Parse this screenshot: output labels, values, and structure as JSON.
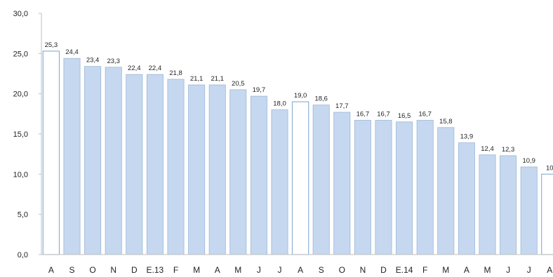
{
  "chart_data": {
    "type": "bar",
    "title": "",
    "xlabel": "",
    "ylabel": "",
    "ylim": [
      0,
      30
    ],
    "ytick_labels": [
      "0,0",
      "5,0",
      "10,0",
      "15,0",
      "20,0",
      "25,0",
      "30,0"
    ],
    "grid": false,
    "categories": [
      "A",
      "S",
      "O",
      "N",
      "D",
      "E.13",
      "F",
      "M",
      "A",
      "M",
      "J",
      "J",
      "A",
      "S",
      "O",
      "N",
      "D",
      "E.14",
      "F",
      "M",
      "A",
      "M",
      "J",
      "J",
      "A"
    ],
    "values": [
      25.3,
      24.4,
      23.4,
      23.3,
      22.4,
      22.4,
      21.8,
      21.1,
      21.1,
      20.5,
      19.7,
      18.0,
      19.0,
      18.6,
      17.7,
      16.7,
      16.7,
      16.5,
      16.7,
      15.8,
      13.9,
      12.4,
      12.3,
      10.9,
      10.0
    ],
    "data_labels": [
      "25,3",
      "24,4",
      "23,4",
      "23,3",
      "22,4",
      "22,4",
      "21,8",
      "21,1",
      "21,1",
      "20,5",
      "19,7",
      "18,0",
      "19,0",
      "18,6",
      "17,7",
      "16,7",
      "16,7",
      "16,5",
      "16,7",
      "15,8",
      "13,9",
      "12,4",
      "12,3",
      "10,9",
      "10"
    ],
    "highlighted": [
      true,
      false,
      false,
      false,
      false,
      false,
      false,
      false,
      false,
      false,
      false,
      false,
      true,
      false,
      false,
      false,
      false,
      false,
      false,
      false,
      false,
      false,
      false,
      false,
      true
    ],
    "colors": {
      "bar_fill": "#c6d8ef",
      "bar_stroke": "#9bb7da",
      "highlight_fill": "#ffffff",
      "highlight_stroke": "#8fb0d6",
      "axis": "#bfbfbf",
      "text": "#222222"
    }
  }
}
